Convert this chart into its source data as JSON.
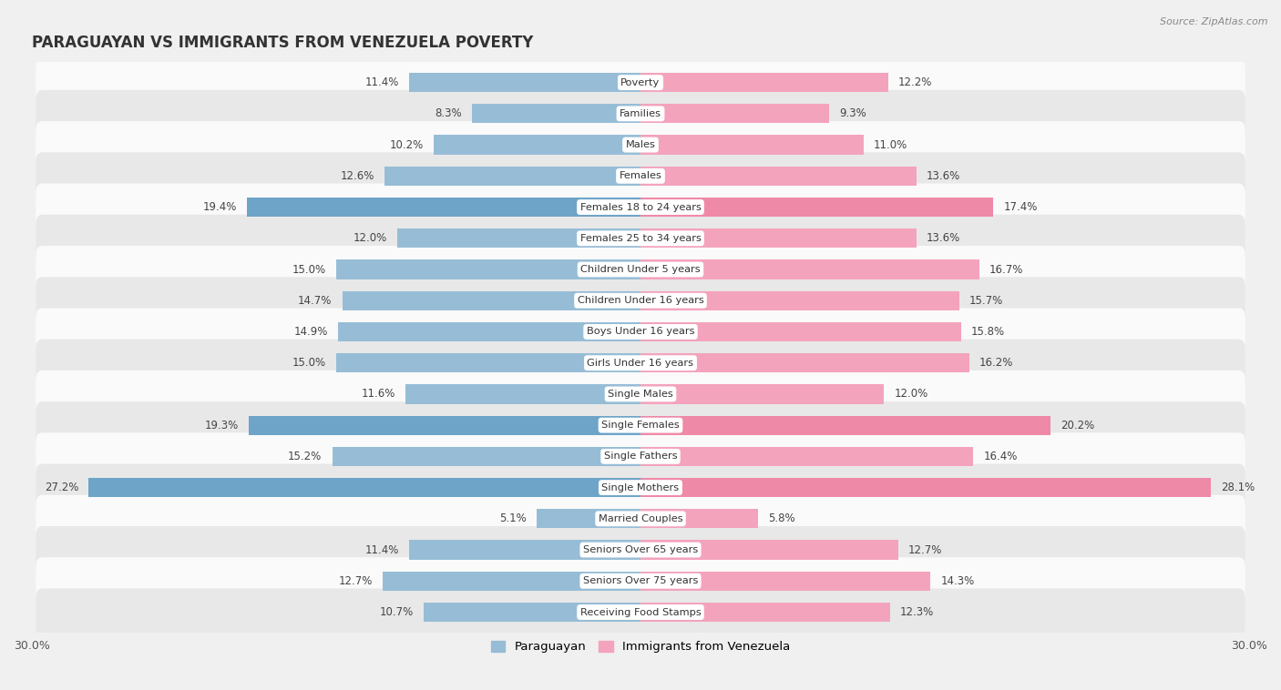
{
  "title": "PARAGUAYAN VS IMMIGRANTS FROM VENEZUELA POVERTY",
  "source": "Source: ZipAtlas.com",
  "categories": [
    "Poverty",
    "Families",
    "Males",
    "Females",
    "Females 18 to 24 years",
    "Females 25 to 34 years",
    "Children Under 5 years",
    "Children Under 16 years",
    "Boys Under 16 years",
    "Girls Under 16 years",
    "Single Males",
    "Single Females",
    "Single Fathers",
    "Single Mothers",
    "Married Couples",
    "Seniors Over 65 years",
    "Seniors Over 75 years",
    "Receiving Food Stamps"
  ],
  "paraguayan": [
    11.4,
    8.3,
    10.2,
    12.6,
    19.4,
    12.0,
    15.0,
    14.7,
    14.9,
    15.0,
    11.6,
    19.3,
    15.2,
    27.2,
    5.1,
    11.4,
    12.7,
    10.7
  ],
  "venezuela": [
    12.2,
    9.3,
    11.0,
    13.6,
    17.4,
    13.6,
    16.7,
    15.7,
    15.8,
    16.2,
    12.0,
    20.2,
    16.4,
    28.1,
    5.8,
    12.7,
    14.3,
    12.3
  ],
  "paraguayan_color": "#97bdd6",
  "venezuela_color": "#f4a3bc",
  "paraguayan_highlight": "#6ea4c8",
  "venezuela_highlight": "#ef89a8",
  "background_color": "#f0f0f0",
  "row_color_light": "#e8e8e8",
  "row_color_dark": "#fafafa",
  "xlim": 30.0,
  "bar_height": 0.62,
  "label_fontsize": 8.5,
  "category_fontsize": 8.2,
  "title_fontsize": 12,
  "legend_labels": [
    "Paraguayan",
    "Immigrants from Venezuela"
  ]
}
